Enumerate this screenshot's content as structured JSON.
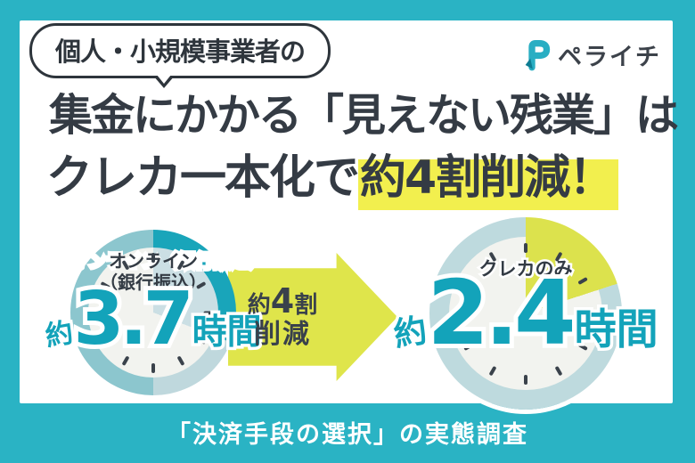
{
  "badge": {
    "label": "個人・小規模事業者の"
  },
  "logo": {
    "name": "ペライチ",
    "icon": "peraichi-p-ribbon-icon"
  },
  "headline": {
    "line1": "集金にかかる「見えない残業」は",
    "line2_prefix": "クレカ一本化で",
    "line2_highlight": "約4割削減！"
  },
  "footer": {
    "text": "「決済手段の選択」の実態調査"
  },
  "colors": {
    "frame_teal": "#2ab3c4",
    "ink": "#343b44",
    "headline_highlight": "#f2ef4e",
    "arrow_yellow": "#dfe54b",
    "number_teal": "#13a3ba",
    "ring_dark_teal": "#19a5ba",
    "ring_medium_teal": "#8cc6ce",
    "ring_light_blue": "#bfd8dd",
    "after_ring_light_blue": "#bedade",
    "face_offwhite": "#f2f3ef",
    "face_slice_blue": "#cbdfe4",
    "slice_yellow": "#dce24d",
    "footer_text": "#ffffff"
  },
  "chart_data": {
    "type": "pie",
    "title": "集金にかかる「見えない残業」はクレカ一本化で約4割削減！",
    "subtitle": "個人・小規模事業者の",
    "units": "時間 (hours)",
    "layout_hint": "two 12-hour clock dials, slice from 12 o'clock clockwise = hours spent",
    "series": [
      {
        "name": "オンライン（銀行振込）",
        "label_line1": "オンライン",
        "label_line2": "（銀行振込）",
        "prefix": "約",
        "value": 3.7,
        "value_text": "3.7",
        "unit": "時間",
        "slice_degrees": 111
      },
      {
        "name": "クレカのみ",
        "label_line1": "クレカのみ",
        "prefix": "約",
        "value": 2.4,
        "value_text": "2.4",
        "unit": "時間",
        "slice_degrees": 72
      }
    ],
    "annotation": {
      "text": "約4割削減",
      "line1_pre": "約",
      "line1_num": "4",
      "line1_post": "割",
      "line2": "削減"
    }
  }
}
